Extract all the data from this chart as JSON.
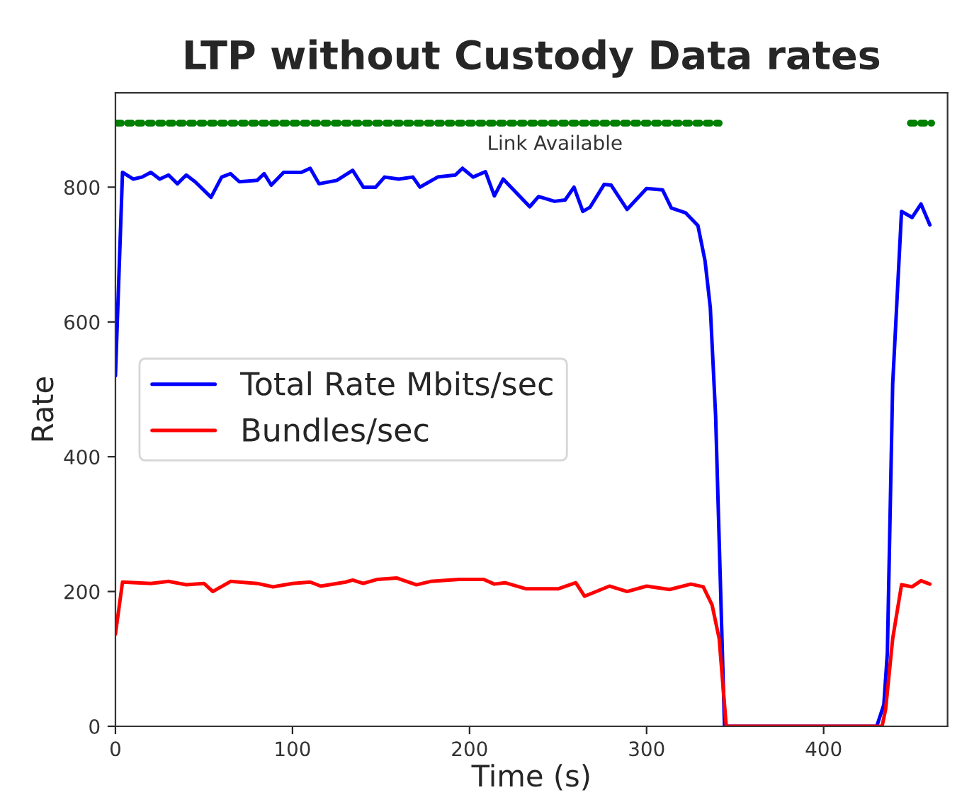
{
  "chart_data": {
    "type": "line",
    "title": "LTP without Custody Data rates",
    "xlabel": "Time (s)",
    "ylabel": "Rate",
    "xlim": [
      0,
      470
    ],
    "ylim": [
      0,
      940
    ],
    "xticks": [
      0,
      100,
      200,
      300,
      400
    ],
    "yticks": [
      0,
      200,
      400,
      600,
      800
    ],
    "grid": false,
    "legend": "left",
    "marker": "none",
    "line_style": "solid",
    "series": [
      {
        "name": "Total Rate Mbits/sec",
        "color": "#0000ff",
        "x": [
          0,
          4,
          10,
          15,
          20,
          25,
          30,
          35,
          40,
          45,
          54,
          60,
          65,
          70,
          80,
          84,
          88,
          95,
          105,
          110,
          115,
          125,
          134,
          140,
          147,
          152,
          160,
          168,
          172,
          182,
          192,
          196,
          202,
          209,
          214,
          219,
          234,
          239,
          248,
          254,
          259,
          264,
          268,
          276,
          280,
          289,
          300,
          309,
          314,
          322,
          329,
          333,
          336,
          339,
          344,
          430,
          434,
          436,
          439,
          444,
          450,
          455,
          460
        ],
        "values": [
          520,
          822,
          812,
          815,
          822,
          812,
          818,
          805,
          818,
          808,
          785,
          815,
          820,
          808,
          810,
          820,
          803,
          822,
          822,
          828,
          805,
          810,
          825,
          800,
          800,
          815,
          812,
          815,
          800,
          815,
          818,
          828,
          815,
          823,
          787,
          812,
          771,
          786,
          779,
          781,
          800,
          764,
          770,
          804,
          803,
          767,
          798,
          796,
          769,
          762,
          743,
          691,
          621,
          460,
          0,
          0,
          32,
          109,
          508,
          764,
          755,
          775,
          744
        ]
      },
      {
        "name": "Bundles/sec",
        "color": "#ff0000",
        "x": [
          0,
          4,
          20,
          30,
          40,
          50,
          55,
          65,
          80,
          89,
          100,
          110,
          116,
          130,
          134,
          140,
          148,
          159,
          170,
          178,
          194,
          208,
          214,
          220,
          232,
          250,
          260,
          265,
          279,
          289,
          300,
          313,
          325,
          332,
          337,
          341,
          345,
          433,
          435,
          439,
          444,
          450,
          455,
          460
        ],
        "values": [
          137,
          214,
          212,
          215,
          210,
          212,
          200,
          215,
          212,
          207,
          212,
          214,
          208,
          214,
          217,
          212,
          218,
          220,
          210,
          215,
          218,
          218,
          211,
          213,
          204,
          204,
          213,
          193,
          208,
          200,
          208,
          203,
          211,
          207,
          180,
          130,
          0,
          0,
          25,
          130,
          210,
          207,
          216,
          211
        ]
      },
      {
        "name": "Link Available",
        "color": "#008000",
        "line_style": "dotted",
        "x": [
          1,
          341,
          null,
          449,
          461
        ],
        "values": [
          895,
          895,
          null,
          895,
          895
        ]
      }
    ]
  }
}
